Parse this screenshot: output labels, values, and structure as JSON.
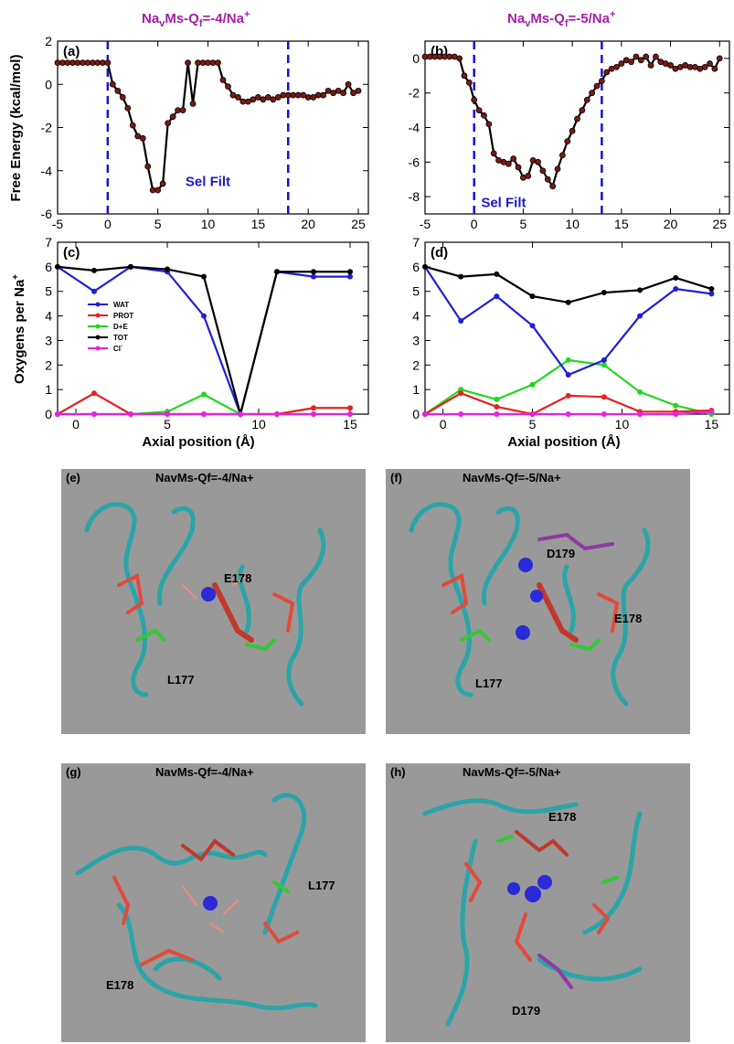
{
  "top_titles": [
    {
      "prefix": "Na",
      "sub1": "v",
      "mid": "Ms-Q",
      "sub2": "f",
      "rest": "=-4/Na",
      "sup": "+"
    },
    {
      "prefix": "Na",
      "sub1": "v",
      "mid": "Ms-Q",
      "sub2": "f",
      "rest": "=-5/Na",
      "sup": "+"
    }
  ],
  "y_label_top": "Free Energy (kcal/mol)",
  "y_label_mid": "Oxygens per Na",
  "y_label_mid_sup": "+",
  "x_label_mid": "Axial position (Å)",
  "colors": {
    "blue": "#1f1fd8",
    "red": "#e82020",
    "green": "#20d820",
    "black": "#000000",
    "magenta": "#e820e0",
    "dash": "#1414d4",
    "marker": "#7a1a12"
  },
  "chart_data": [
    {
      "panel": "(a)",
      "type": "line",
      "xlim": [
        -5,
        26
      ],
      "ylim": [
        -6,
        2
      ],
      "xticks": [
        "-5",
        "0",
        "5",
        "10",
        "15",
        "20",
        "25"
      ],
      "yticks": [
        "-6",
        "-4",
        "-2",
        "0",
        "2"
      ],
      "annotation": "Sel Filt",
      "vlines": [
        0,
        18
      ],
      "x": [
        -5,
        -4.5,
        -4,
        -3.5,
        -3,
        -2.5,
        -2,
        -1.5,
        -1,
        -0.5,
        0,
        0.5,
        1,
        1.5,
        2,
        2.5,
        3,
        3.5,
        4,
        4.5,
        5,
        5.5,
        6,
        6.5,
        7,
        7.5,
        8,
        8.5,
        9,
        9.5,
        10,
        10.5,
        11,
        11.5,
        12,
        12.5,
        13,
        13.5,
        14,
        14.5,
        15,
        15.5,
        16,
        16.5,
        17,
        17.5,
        18,
        18.5,
        19,
        19.5,
        20,
        20.5,
        21,
        21.5,
        22,
        22.5,
        23,
        23.5,
        24,
        24.5,
        25
      ],
      "y": [
        1,
        1,
        1,
        1,
        1,
        1,
        1,
        1,
        1,
        1,
        1,
        0,
        -0.3,
        -0.6,
        -1.1,
        -1.9,
        -2.4,
        -2.5,
        -3.8,
        -4.9,
        -4.9,
        -4.6,
        -1.8,
        -1.5,
        -1.2,
        -1.2,
        1,
        -0.9,
        1,
        1,
        1,
        1,
        1,
        0.2,
        -0.1,
        -0.5,
        -0.6,
        -0.8,
        -0.8,
        -0.7,
        -0.6,
        -0.7,
        -0.6,
        -0.7,
        -0.6,
        -0.5,
        -0.5,
        -0.5,
        -0.5,
        -0.5,
        -0.6,
        -0.6,
        -0.5,
        -0.5,
        -0.3,
        -0.4,
        -0.3,
        -0.4,
        0,
        -0.4,
        -0.3
      ]
    },
    {
      "panel": "(b)",
      "type": "line",
      "xlim": [
        -5,
        26
      ],
      "ylim": [
        -9,
        1
      ],
      "xticks": [
        "-5",
        "0",
        "5",
        "10",
        "15",
        "20",
        "25"
      ],
      "yticks": [
        "-8",
        "-6",
        "-4",
        "-2",
        "0"
      ],
      "annotation": "Sel Filt",
      "vlines": [
        0,
        13
      ],
      "x": [
        -5,
        -4.5,
        -4,
        -3.5,
        -3,
        -2.5,
        -2,
        -1.5,
        -1,
        -0.5,
        0,
        0.5,
        1,
        1.5,
        2,
        2.5,
        3,
        3.5,
        4,
        4.5,
        5,
        5.5,
        6,
        6.5,
        7,
        7.5,
        8,
        8.5,
        9,
        9.5,
        10,
        10.5,
        11,
        11.5,
        12,
        12.5,
        13,
        13.5,
        14,
        14.5,
        15,
        15.5,
        16,
        16.5,
        17,
        17.5,
        18,
        18.5,
        19,
        19.5,
        20,
        20.5,
        21,
        21.5,
        22,
        22.5,
        23,
        23.5,
        24,
        24.5,
        25
      ],
      "y": [
        0.1,
        0.1,
        0.1,
        0.1,
        0.1,
        0.1,
        0.1,
        0,
        -1,
        -1.4,
        -2.4,
        -3,
        -3.3,
        -3.8,
        -5.5,
        -5.9,
        -6,
        -6.1,
        -5.8,
        -6.3,
        -6.9,
        -6.8,
        -5.9,
        -6,
        -6.5,
        -7,
        -7.4,
        -6.4,
        -5.6,
        -4.8,
        -4.2,
        -3.5,
        -3,
        -2.4,
        -2,
        -1.6,
        -1.3,
        -0.8,
        -0.6,
        -0.5,
        -0.3,
        -0.1,
        -0.2,
        0.1,
        -0.1,
        0.1,
        -0.4,
        0.1,
        -0.2,
        -0.3,
        -0.4,
        -0.6,
        -0.5,
        -0.4,
        -0.5,
        -0.5,
        -0.6,
        -0.5,
        -0.3,
        -0.6,
        0
      ]
    },
    {
      "panel": "(c)",
      "type": "line",
      "xlim": [
        -1,
        16
      ],
      "ylim": [
        0,
        7
      ],
      "xticks": [
        "0",
        "5",
        "10",
        "15"
      ],
      "yticks": [
        "0",
        "1",
        "2",
        "3",
        "4",
        "5",
        "6",
        "7"
      ],
      "x": [
        -1,
        1,
        3,
        5,
        7,
        9,
        11,
        13,
        15
      ],
      "series": [
        {
          "name": "WAT",
          "color": "#1f1fd8",
          "values": [
            6,
            5,
            6,
            5.8,
            4,
            0,
            5.8,
            5.6,
            5.6
          ]
        },
        {
          "name": "PROT",
          "color": "#e82020",
          "values": [
            0,
            0.85,
            0,
            0,
            0,
            0,
            0,
            0.25,
            0.25
          ]
        },
        {
          "name": "D+E",
          "color": "#20d820",
          "values": [
            0,
            0,
            0,
            0.1,
            0.8,
            0,
            0,
            0,
            0
          ]
        },
        {
          "name": "TOT",
          "color": "#000000",
          "values": [
            6,
            5.85,
            6,
            5.9,
            5.6,
            0,
            5.8,
            5.8,
            5.8
          ]
        },
        {
          "name": "Cl",
          "color": "#e820e0",
          "values": [
            0,
            0,
            0,
            0,
            0,
            0,
            0,
            0,
            0
          ]
        }
      ],
      "legend_cl_sup": "-"
    },
    {
      "panel": "(d)",
      "type": "line",
      "xlim": [
        -1,
        16
      ],
      "ylim": [
        0,
        7
      ],
      "xticks": [
        "0",
        "5",
        "10",
        "15"
      ],
      "yticks": [
        "0",
        "1",
        "2",
        "3",
        "4",
        "5",
        "6",
        "7"
      ],
      "x": [
        -1,
        1,
        3,
        5,
        7,
        9,
        11,
        13,
        15
      ],
      "series": [
        {
          "name": "WAT",
          "color": "#1f1fd8",
          "values": [
            6,
            3.8,
            4.8,
            3.6,
            1.6,
            2.2,
            4,
            5.1,
            4.9
          ]
        },
        {
          "name": "PROT",
          "color": "#e82020",
          "values": [
            0,
            0.85,
            0.3,
            0,
            0.75,
            0.7,
            0.1,
            0.1,
            0.15
          ]
        },
        {
          "name": "D+E",
          "color": "#20d820",
          "values": [
            0,
            1,
            0.6,
            1.2,
            2.2,
            2,
            0.9,
            0.35,
            0
          ]
        },
        {
          "name": "TOT",
          "color": "#000000",
          "values": [
            6,
            5.6,
            5.7,
            4.8,
            4.55,
            4.95,
            5.05,
            5.55,
            5.1
          ]
        },
        {
          "name": "Cl",
          "color": "#e820e0",
          "values": [
            0,
            0,
            0,
            0,
            0,
            0,
            0,
            0,
            0.1
          ]
        }
      ]
    }
  ],
  "molecular_panels": [
    {
      "label": "(e)",
      "title": "NavMs-Qf=-4/Na+",
      "residues": [
        "E178",
        "L177"
      ]
    },
    {
      "label": "(f)",
      "title": "NavMs-Qf=-5/Na+",
      "residues": [
        "D179",
        "E178",
        "L177"
      ]
    },
    {
      "label": "(g)",
      "title": "NavMs-Qf=-4/Na+",
      "residues": [
        "L177",
        "E178"
      ]
    },
    {
      "label": "(h)",
      "title": "NavMs-Qf=-5/Na+",
      "residues": [
        "E178",
        "D179"
      ]
    }
  ]
}
